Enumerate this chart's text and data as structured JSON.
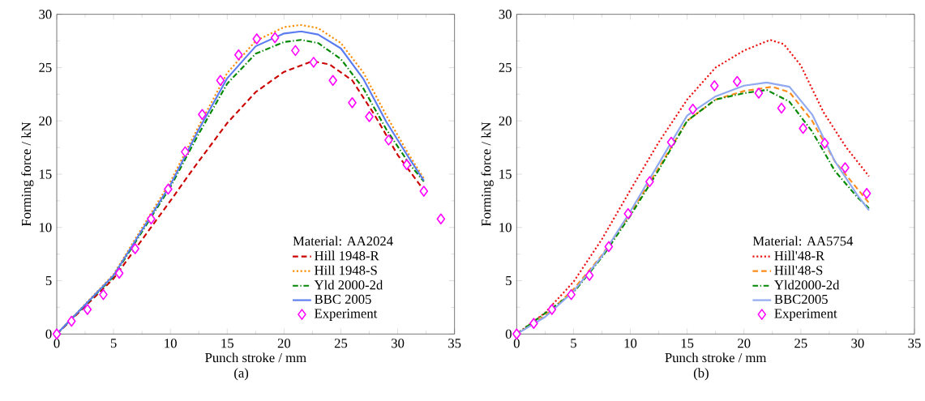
{
  "chart_data": [
    {
      "type": "line",
      "xlabel": "Punch stroke / mm",
      "ylabel": "Forming force / kN",
      "legend_title": "Material: AA2024",
      "annotations": [
        "(a)"
      ],
      "legend": "bottom right",
      "xlim": [
        0,
        35
      ],
      "ylim": [
        0,
        30
      ],
      "xticks": [
        0,
        5,
        10,
        15,
        20,
        25,
        30,
        35
      ],
      "yticks": [
        0,
        5,
        10,
        15,
        20,
        25,
        30
      ],
      "series": [
        {
          "name": "Hill 1948-R",
          "type": "line",
          "line_style": "dashed",
          "color": "#cc0000",
          "x": [
            0,
            5,
            10,
            12,
            15,
            17.5,
            20,
            22.5,
            24,
            26,
            28,
            30,
            32.3
          ],
          "values": [
            0,
            5.2,
            12.5,
            15.5,
            19.8,
            22.7,
            24.6,
            25.6,
            25.3,
            23.8,
            20.5,
            16.8,
            13.5
          ]
        },
        {
          "name": "Hill 1948-S",
          "type": "line",
          "line_style": "dotted",
          "color": "#ff8c00",
          "x": [
            0,
            5,
            10,
            12.5,
            15,
            17.5,
            20,
            21.5,
            23,
            25,
            27,
            29,
            31,
            32.3
          ],
          "values": [
            0,
            5.6,
            14.3,
            19.5,
            24.5,
            27.5,
            28.8,
            29.0,
            28.7,
            27.3,
            24.5,
            20.5,
            16.8,
            14.6
          ]
        },
        {
          "name": "Yld 2000-2d",
          "type": "line",
          "line_style": "dashdot",
          "color": "#008800",
          "x": [
            0,
            5,
            10,
            12.5,
            15,
            17.5,
            20,
            21.5,
            23,
            25,
            27,
            29,
            31,
            32.3
          ],
          "values": [
            0,
            5.4,
            13.8,
            18.8,
            23.5,
            26.3,
            27.4,
            27.6,
            27.3,
            25.8,
            23.0,
            19.2,
            16.0,
            14.3
          ]
        },
        {
          "name": "BBC 2005",
          "type": "line",
          "line_style": "solid",
          "color": "#5b7cf0",
          "x": [
            0,
            5,
            10,
            12.5,
            15,
            17.5,
            20,
            21.5,
            23,
            25,
            27,
            29,
            31,
            32.3
          ],
          "values": [
            0,
            5.5,
            14.0,
            19.2,
            24.0,
            27.0,
            28.2,
            28.4,
            28.1,
            26.8,
            23.9,
            19.9,
            16.5,
            14.4
          ]
        },
        {
          "name": "Experiment",
          "type": "scatter",
          "marker": "diamond",
          "color": "#ff00ff",
          "x": [
            0,
            1.3,
            2.7,
            4.1,
            5.5,
            6.9,
            8.3,
            9.8,
            11.3,
            12.8,
            14.4,
            16.0,
            17.6,
            19.2,
            21.0,
            22.6,
            24.3,
            26.0,
            27.5,
            29.2,
            30.8,
            32.3,
            33.8
          ],
          "values": [
            0,
            1.2,
            2.3,
            3.7,
            5.7,
            8.0,
            10.8,
            13.6,
            17.1,
            20.6,
            23.8,
            26.2,
            27.7,
            27.8,
            26.6,
            25.5,
            23.8,
            21.7,
            20.4,
            18.2,
            15.9,
            13.4,
            10.8
          ]
        }
      ]
    },
    {
      "type": "line",
      "xlabel": "Punch stroke / mm",
      "ylabel": "Forming force / kN",
      "legend_title": "Material: AA5754",
      "annotations": [
        "(b)"
      ],
      "legend": "bottom right",
      "xlim": [
        0,
        35
      ],
      "ylim": [
        0,
        30
      ],
      "xticks": [
        0,
        5,
        10,
        15,
        20,
        25,
        30,
        35
      ],
      "yticks": [
        0,
        5,
        10,
        15,
        20,
        25,
        30
      ],
      "series": [
        {
          "name": "Hill'48-R",
          "type": "line",
          "line_style": "dotted",
          "color": "#ee1111",
          "x": [
            0,
            2.5,
            5,
            7.5,
            10,
            12.5,
            15,
            17.5,
            20,
            22.3,
            23.5,
            25,
            27,
            29,
            31
          ],
          "values": [
            0,
            2.0,
            4.9,
            8.9,
            13.5,
            18.0,
            22.0,
            25.0,
            26.6,
            27.6,
            27.2,
            25.2,
            20.8,
            17.5,
            14.8
          ]
        },
        {
          "name": "Hill'48-S",
          "type": "line",
          "line_style": "dashed",
          "color": "#ff8c1a",
          "x": [
            0,
            2.5,
            5,
            7.5,
            10,
            12.5,
            15,
            17.5,
            20,
            22.5,
            24,
            26,
            28,
            30,
            31
          ],
          "values": [
            0,
            1.7,
            4.2,
            7.4,
            11.3,
            15.6,
            20.0,
            22.0,
            22.8,
            23.2,
            22.7,
            20.0,
            16.2,
            13.6,
            12.3
          ]
        },
        {
          "name": "Yld2000-2d",
          "type": "line",
          "line_style": "dashdot",
          "color": "#008800",
          "x": [
            0,
            5,
            7.5,
            10,
            12.5,
            15,
            17.5,
            20,
            22,
            24,
            26,
            28,
            30,
            31
          ],
          "values": [
            0,
            3.9,
            7.2,
            11.1,
            15.4,
            20.0,
            22.0,
            22.6,
            22.9,
            21.8,
            19.0,
            15.3,
            12.8,
            11.8
          ]
        },
        {
          "name": "BBC2005",
          "type": "line",
          "line_style": "solid",
          "color": "#8fa8f0",
          "x": [
            0,
            2.5,
            5,
            7.5,
            10,
            12.5,
            15,
            17.5,
            20,
            22,
            24,
            26,
            28,
            30,
            31
          ],
          "values": [
            0,
            1.6,
            4.0,
            7.3,
            11.5,
            16.0,
            20.5,
            22.3,
            23.3,
            23.6,
            23.2,
            20.6,
            16.2,
            13.0,
            11.6
          ]
        },
        {
          "name": "Experiment",
          "type": "scatter",
          "marker": "diamond",
          "color": "#ff00ff",
          "x": [
            0,
            1.5,
            3.1,
            4.8,
            6.4,
            8.1,
            9.8,
            11.7,
            13.6,
            15.5,
            17.4,
            19.4,
            21.3,
            23.3,
            25.2,
            27.1,
            28.9,
            30.8
          ],
          "values": [
            0,
            1.0,
            2.3,
            3.7,
            5.5,
            8.2,
            11.3,
            14.3,
            18.0,
            21.1,
            23.3,
            23.7,
            22.6,
            21.2,
            19.3,
            17.9,
            15.6,
            13.2
          ]
        }
      ]
    }
  ]
}
